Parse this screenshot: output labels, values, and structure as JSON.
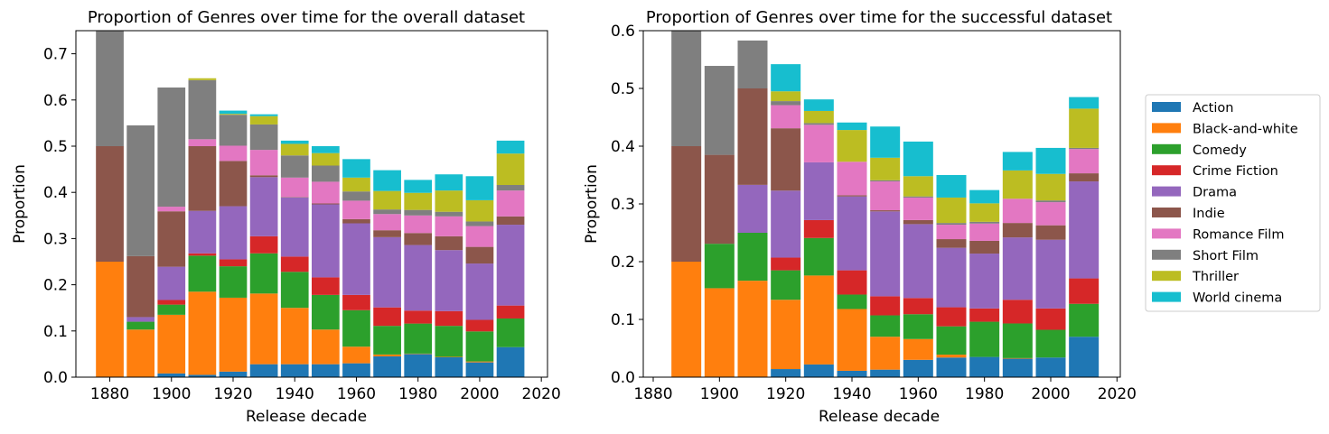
{
  "legend": {
    "items": [
      "Action",
      "Black-and-white",
      "Comedy",
      "Crime Fiction",
      "Drama",
      "Indie",
      "Romance Film",
      "Short Film",
      "Thriller",
      "World cinema"
    ]
  },
  "colors": {
    "Action": "#1f77b4",
    "Black-and-white": "#ff7f0e",
    "Comedy": "#2ca02c",
    "Crime Fiction": "#d62728",
    "Drama": "#9467bd",
    "Indie": "#8c564b",
    "Romance Film": "#e377c2",
    "Short Film": "#7f7f7f",
    "Thriller": "#bcbd22",
    "World cinema": "#17becf"
  },
  "chart_data": [
    {
      "type": "bar",
      "stacked": true,
      "title": "Proportion of Genres over time for the overall dataset",
      "xlabel": "Release decade",
      "ylabel": "Proportion",
      "xlim": [
        1869,
        2022
      ],
      "ylim": [
        0,
        0.75
      ],
      "xticks": [
        "1880",
        "1900",
        "1920",
        "1940",
        "1960",
        "1980",
        "2000",
        "2020"
      ],
      "yticks": [
        "0.0",
        "0.1",
        "0.2",
        "0.3",
        "0.4",
        "0.5",
        "0.6",
        "0.7"
      ],
      "decades": [
        1880,
        1890,
        1900,
        1910,
        1920,
        1930,
        1940,
        1950,
        1960,
        1970,
        1980,
        1990,
        2000,
        2010
      ],
      "series": [
        {
          "name": "Action",
          "values": [
            0,
            0,
            0.008,
            0.005,
            0.012,
            0.028,
            0.028,
            0.028,
            0.03,
            0.045,
            0.05,
            0.043,
            0.032,
            0.065
          ]
        },
        {
          "name": "Black-and-white",
          "values": [
            0.25,
            0.103,
            0.127,
            0.18,
            0.16,
            0.153,
            0.122,
            0.075,
            0.036,
            0.004,
            0.001,
            0.001,
            0.002,
            0
          ]
        },
        {
          "name": "Comedy",
          "values": [
            0,
            0.017,
            0.022,
            0.078,
            0.068,
            0.087,
            0.078,
            0.075,
            0.079,
            0.062,
            0.065,
            0.067,
            0.065,
            0.062
          ]
        },
        {
          "name": "Crime Fiction",
          "values": [
            0,
            0,
            0.01,
            0.005,
            0.015,
            0.037,
            0.033,
            0.038,
            0.033,
            0.04,
            0.028,
            0.032,
            0.025,
            0.028
          ]
        },
        {
          "name": "Drama",
          "values": [
            0,
            0.01,
            0.072,
            0.092,
            0.115,
            0.128,
            0.128,
            0.158,
            0.155,
            0.152,
            0.142,
            0.132,
            0.122,
            0.175
          ]
        },
        {
          "name": "Indie",
          "values": [
            0.25,
            0.132,
            0.12,
            0.14,
            0.098,
            0.004,
            0.001,
            0.002,
            0.009,
            0.015,
            0.026,
            0.03,
            0.036,
            0.018
          ]
        },
        {
          "name": "Romance Film",
          "values": [
            0,
            0,
            0.01,
            0.015,
            0.033,
            0.055,
            0.042,
            0.047,
            0.04,
            0.035,
            0.038,
            0.043,
            0.045,
            0.056
          ]
        },
        {
          "name": "Short Film",
          "values": [
            0.25,
            0.283,
            0.258,
            0.128,
            0.067,
            0.055,
            0.048,
            0.035,
            0.02,
            0.01,
            0.012,
            0.01,
            0.01,
            0.012
          ]
        },
        {
          "name": "Thriller",
          "values": [
            0,
            0,
            0,
            0.004,
            0.002,
            0.018,
            0.025,
            0.027,
            0.03,
            0.04,
            0.037,
            0.046,
            0.046,
            0.068
          ]
        },
        {
          "name": "World cinema",
          "values": [
            0,
            0,
            0,
            0,
            0.007,
            0.004,
            0.007,
            0.015,
            0.04,
            0.045,
            0.028,
            0.035,
            0.052,
            0.028
          ]
        }
      ]
    },
    {
      "type": "bar",
      "stacked": true,
      "title": "Proportion of Genres over time for the successful dataset",
      "xlabel": "Release decade",
      "ylabel": "Proportion",
      "xlim": [
        1877,
        2021
      ],
      "ylim": [
        0,
        0.6
      ],
      "xticks": [
        "1880",
        "1900",
        "1920",
        "1940",
        "1960",
        "1980",
        "2000",
        "2020"
      ],
      "yticks": [
        "0.0",
        "0.1",
        "0.2",
        "0.3",
        "0.4",
        "0.5",
        "0.6"
      ],
      "decades": [
        1890,
        1900,
        1910,
        1920,
        1930,
        1940,
        1950,
        1960,
        1970,
        1980,
        1990,
        2000,
        2010
      ],
      "series": [
        {
          "name": "Action",
          "values": [
            0,
            0,
            0,
            0.014,
            0.022,
            0.011,
            0.013,
            0.03,
            0.034,
            0.035,
            0.032,
            0.034,
            0.07
          ]
        },
        {
          "name": "Black-and-white",
          "values": [
            0.2,
            0.154,
            0.167,
            0.12,
            0.154,
            0.107,
            0.057,
            0.036,
            0.005,
            0,
            0.001,
            0,
            0
          ]
        },
        {
          "name": "Comedy",
          "values": [
            0,
            0.077,
            0.083,
            0.051,
            0.065,
            0.025,
            0.037,
            0.043,
            0.049,
            0.061,
            0.06,
            0.048,
            0.057
          ]
        },
        {
          "name": "Crime Fiction",
          "values": [
            0,
            0,
            0,
            0.022,
            0.031,
            0.042,
            0.033,
            0.028,
            0.033,
            0.023,
            0.041,
            0.037,
            0.044
          ]
        },
        {
          "name": "Drama",
          "values": [
            0,
            0,
            0.083,
            0.116,
            0.1,
            0.128,
            0.147,
            0.128,
            0.103,
            0.095,
            0.108,
            0.119,
            0.168
          ]
        },
        {
          "name": "Indie",
          "values": [
            0.2,
            0.154,
            0.167,
            0.108,
            0,
            0.002,
            0.002,
            0.007,
            0.015,
            0.022,
            0.025,
            0.025,
            0.014
          ]
        },
        {
          "name": "Romance Film",
          "values": [
            0,
            0,
            0,
            0.04,
            0.065,
            0.058,
            0.05,
            0.039,
            0.025,
            0.03,
            0.042,
            0.04,
            0.042
          ]
        },
        {
          "name": "Short Film",
          "values": [
            0.2,
            0.154,
            0.083,
            0.007,
            0.003,
            0,
            0.002,
            0.002,
            0.003,
            0.003,
            0,
            0.003,
            0.002
          ]
        },
        {
          "name": "Thriller",
          "values": [
            0,
            0,
            0,
            0.017,
            0.021,
            0.055,
            0.039,
            0.035,
            0.044,
            0.032,
            0.049,
            0.046,
            0.068
          ]
        },
        {
          "name": "World cinema",
          "values": [
            0,
            0,
            0,
            0.047,
            0.02,
            0.013,
            0.054,
            0.06,
            0.039,
            0.023,
            0.032,
            0.045,
            0.02
          ]
        }
      ]
    }
  ]
}
